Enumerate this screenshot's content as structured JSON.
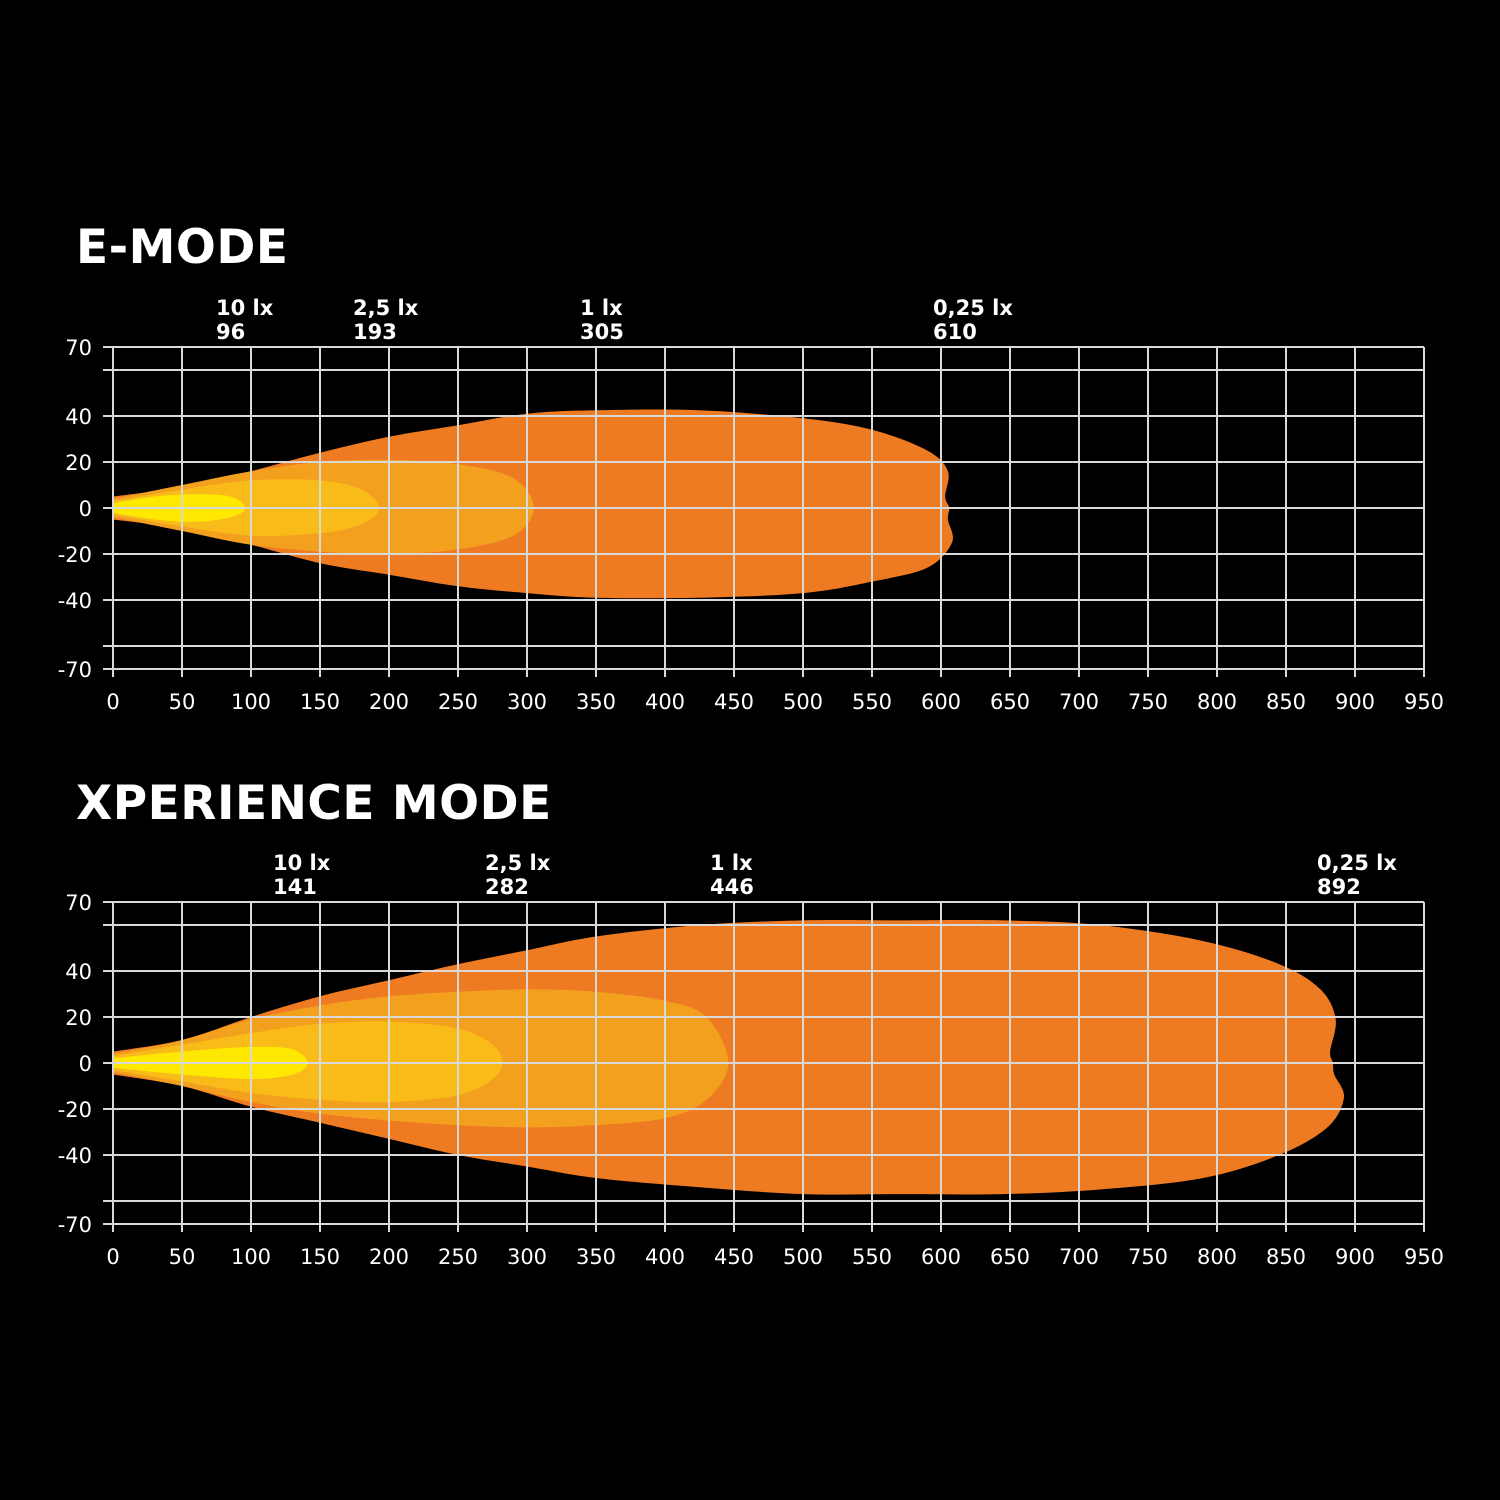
{
  "chart_data": [
    {
      "type": "area",
      "title": "E-MODE",
      "xlim": [
        0,
        950
      ],
      "ylim": [
        -70,
        70
      ],
      "x_ticks": [
        0,
        50,
        100,
        150,
        200,
        250,
        300,
        350,
        400,
        450,
        500,
        550,
        600,
        650,
        700,
        750,
        800,
        850,
        900,
        950
      ],
      "y_tick_labels": [
        70,
        40,
        20,
        0,
        -20,
        -40,
        -70
      ],
      "y_grid": [
        70,
        60,
        40,
        20,
        0,
        -20,
        -40,
        -60,
        -70
      ],
      "grid": true,
      "annotations": [
        {
          "label": "10 lx",
          "value": "96"
        },
        {
          "label": "2,5 lx",
          "value": "193"
        },
        {
          "label": "1 lx",
          "value": "305"
        },
        {
          "label": "0,25 lx",
          "value": "610"
        }
      ],
      "contours": [
        {
          "level": "0,25 lx",
          "reach": 610,
          "color": "#ee7a22",
          "upper": [
            [
              0,
              5
            ],
            [
              50,
              9
            ],
            [
              100,
              16
            ],
            [
              150,
              24
            ],
            [
              200,
              31
            ],
            [
              250,
              36
            ],
            [
              300,
              41
            ],
            [
              350,
              42.5
            ],
            [
              425,
              42.5
            ],
            [
              500,
              39
            ],
            [
              550,
              34
            ],
            [
              590,
              25
            ],
            [
              605,
              16
            ],
            [
              603,
              5
            ],
            [
              606,
              0
            ]
          ],
          "lower": [
            [
              0,
              -5
            ],
            [
              50,
              -9
            ],
            [
              100,
              -16
            ],
            [
              150,
              -24
            ],
            [
              200,
              -29
            ],
            [
              250,
              -34
            ],
            [
              300,
              -37
            ],
            [
              350,
              -39
            ],
            [
              425,
              -39
            ],
            [
              500,
              -37
            ],
            [
              550,
              -32
            ],
            [
              590,
              -26
            ],
            [
              608,
              -15
            ],
            [
              605,
              -5
            ],
            [
              606,
              0
            ]
          ]
        },
        {
          "level": "1 lx",
          "reach": 305,
          "color": "#f4a01f",
          "upper": [
            [
              0,
              4
            ],
            [
              50,
              10
            ],
            [
              100,
              16
            ],
            [
              150,
              20
            ],
            [
              200,
              21
            ],
            [
              250,
              19
            ],
            [
              290,
              13
            ],
            [
              305,
              0
            ]
          ],
          "lower": [
            [
              0,
              -4
            ],
            [
              50,
              -10
            ],
            [
              100,
              -16
            ],
            [
              150,
              -19
            ],
            [
              200,
              -20
            ],
            [
              250,
              -18
            ],
            [
              290,
              -12
            ],
            [
              305,
              0
            ]
          ]
        },
        {
          "level": "2,5 lx",
          "reach": 193,
          "color": "#f8bb17",
          "upper": [
            [
              0,
              3
            ],
            [
              50,
              8
            ],
            [
              100,
              12
            ],
            [
              150,
              12
            ],
            [
              180,
              8
            ],
            [
              193,
              0
            ]
          ],
          "lower": [
            [
              0,
              -3
            ],
            [
              50,
              -8
            ],
            [
              100,
              -12
            ],
            [
              150,
              -11
            ],
            [
              180,
              -7
            ],
            [
              193,
              0
            ]
          ]
        },
        {
          "level": "10 lx",
          "reach": 96,
          "color": "#ffe900",
          "upper": [
            [
              0,
              2
            ],
            [
              30,
              5
            ],
            [
              60,
              6
            ],
            [
              85,
              5
            ],
            [
              96,
              0
            ]
          ],
          "lower": [
            [
              0,
              -2
            ],
            [
              30,
              -5
            ],
            [
              60,
              -6
            ],
            [
              85,
              -4
            ],
            [
              96,
              0
            ]
          ]
        }
      ]
    },
    {
      "type": "area",
      "title": "XPERIENCE MODE",
      "xlim": [
        0,
        950
      ],
      "ylim": [
        -70,
        70
      ],
      "x_ticks": [
        0,
        50,
        100,
        150,
        200,
        250,
        300,
        350,
        400,
        450,
        500,
        550,
        600,
        650,
        700,
        750,
        800,
        850,
        900,
        950
      ],
      "y_tick_labels": [
        70,
        40,
        20,
        0,
        -20,
        -40,
        -70
      ],
      "y_grid": [
        70,
        60,
        40,
        20,
        0,
        -20,
        -40,
        -60,
        -70
      ],
      "grid": true,
      "annotations": [
        {
          "label": "10 lx",
          "value": "141"
        },
        {
          "label": "2,5 lx",
          "value": "282"
        },
        {
          "label": "1 lx",
          "value": "446"
        },
        {
          "label": "0,25 lx",
          "value": "892"
        }
      ],
      "contours": [
        {
          "level": "0,25 lx",
          "reach": 892,
          "color": "#ee7a22",
          "upper": [
            [
              0,
              5
            ],
            [
              50,
              10
            ],
            [
              100,
              20
            ],
            [
              150,
              29
            ],
            [
              200,
              36
            ],
            [
              250,
              43
            ],
            [
              300,
              49
            ],
            [
              350,
              55
            ],
            [
              425,
              60
            ],
            [
              500,
              62
            ],
            [
              570,
              62
            ],
            [
              645,
              62
            ],
            [
              715,
              60
            ],
            [
              790,
              53
            ],
            [
              845,
              43
            ],
            [
              875,
              32
            ],
            [
              886,
              19
            ],
            [
              882,
              5
            ],
            [
              884,
              0
            ]
          ],
          "lower": [
            [
              0,
              -5
            ],
            [
              50,
              -10
            ],
            [
              100,
              -19
            ],
            [
              150,
              -26
            ],
            [
              200,
              -33
            ],
            [
              250,
              -40
            ],
            [
              300,
              -45
            ],
            [
              350,
              -50
            ],
            [
              425,
              -54
            ],
            [
              500,
              -57
            ],
            [
              570,
              -57
            ],
            [
              645,
              -57
            ],
            [
              715,
              -55
            ],
            [
              790,
              -50
            ],
            [
              845,
              -40
            ],
            [
              880,
              -28
            ],
            [
              892,
              -15
            ],
            [
              885,
              -5
            ],
            [
              884,
              0
            ]
          ]
        },
        {
          "level": "1 lx",
          "reach": 446,
          "color": "#f4a01f",
          "upper": [
            [
              0,
              4
            ],
            [
              50,
              10
            ],
            [
              100,
              19
            ],
            [
              150,
              25
            ],
            [
              200,
              29
            ],
            [
              250,
              31
            ],
            [
              300,
              32
            ],
            [
              350,
              31
            ],
            [
              400,
              27
            ],
            [
              430,
              20
            ],
            [
              446,
              0
            ]
          ],
          "lower": [
            [
              0,
              -4
            ],
            [
              50,
              -10
            ],
            [
              100,
              -17
            ],
            [
              150,
              -22
            ],
            [
              200,
              -25
            ],
            [
              250,
              -27
            ],
            [
              300,
              -28
            ],
            [
              350,
              -27
            ],
            [
              400,
              -24
            ],
            [
              430,
              -16
            ],
            [
              446,
              0
            ]
          ]
        },
        {
          "level": "2,5 lx",
          "reach": 282,
          "color": "#f8bb17",
          "upper": [
            [
              0,
              3
            ],
            [
              50,
              8
            ],
            [
              100,
              13
            ],
            [
              150,
              17
            ],
            [
              200,
              18
            ],
            [
              250,
              15
            ],
            [
              275,
              8
            ],
            [
              282,
              0
            ]
          ],
          "lower": [
            [
              0,
              -3
            ],
            [
              50,
              -8
            ],
            [
              100,
              -13
            ],
            [
              150,
              -16
            ],
            [
              200,
              -17
            ],
            [
              250,
              -14
            ],
            [
              275,
              -7
            ],
            [
              282,
              0
            ]
          ]
        },
        {
          "level": "10 lx",
          "reach": 141,
          "color": "#ffe900",
          "upper": [
            [
              0,
              2
            ],
            [
              50,
              5
            ],
            [
              100,
              7
            ],
            [
              130,
              6
            ],
            [
              141,
              0
            ]
          ],
          "lower": [
            [
              0,
              -2
            ],
            [
              50,
              -5
            ],
            [
              100,
              -7
            ],
            [
              130,
              -5
            ],
            [
              141,
              0
            ]
          ]
        }
      ]
    }
  ],
  "colors": {
    "background": "#000000",
    "grid": "#d9d9d9",
    "text": "#ffffff"
  }
}
